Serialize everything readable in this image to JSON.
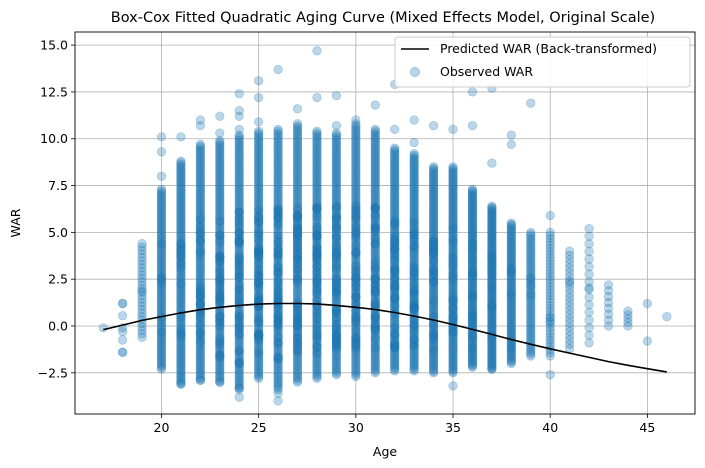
{
  "chart_data": {
    "type": "scatter",
    "title": "Box-Cox Fitted Quadratic Aging Curve (Mixed Effects Model, Original Scale)",
    "xlabel": "Age",
    "ylabel": "WAR",
    "xlim": [
      15.55,
      47.45
    ],
    "ylim": [
      -4.7,
      15.7
    ],
    "xticks": [
      20,
      25,
      30,
      35,
      40,
      45
    ],
    "xtick_labels": [
      "20",
      "25",
      "30",
      "35",
      "40",
      "45"
    ],
    "yticks": [
      -2.5,
      0.0,
      2.5,
      5.0,
      7.5,
      10.0,
      12.5,
      15.0
    ],
    "ytick_labels": [
      "−2.5",
      "0.0",
      "2.5",
      "5.0",
      "7.5",
      "10.0",
      "12.5",
      "15.0"
    ],
    "grid": true,
    "legend_position": "top-right",
    "colors": {
      "scatter": "#1f77b4",
      "line": "#000000"
    },
    "series": [
      {
        "name": "Predicted WAR (Back-transformed)",
        "type": "line",
        "x": [
          17,
          18,
          19,
          20,
          21,
          22,
          23,
          24,
          25,
          26,
          27,
          28,
          29,
          30,
          31,
          32,
          33,
          34,
          35,
          36,
          37,
          38,
          39,
          40,
          41,
          42,
          43,
          44,
          45,
          46
        ],
        "y": [
          -0.2,
          0.05,
          0.3,
          0.5,
          0.7,
          0.87,
          1.0,
          1.1,
          1.17,
          1.2,
          1.2,
          1.18,
          1.1,
          1.0,
          0.88,
          0.72,
          0.53,
          0.32,
          0.08,
          -0.18,
          -0.45,
          -0.72,
          -0.98,
          -1.22,
          -1.45,
          -1.68,
          -1.9,
          -2.1,
          -2.28,
          -2.45
        ]
      },
      {
        "name": "Observed WAR",
        "type": "scatter",
        "alpha": 0.3,
        "columns": [
          {
            "age": 17,
            "points": [
              -0.1
            ]
          },
          {
            "age": 18,
            "min": -1.4,
            "max": 1.2,
            "n": 5,
            "extra": [
              -1.4,
              -0.3,
              1.2
            ]
          },
          {
            "age": 19,
            "min": -0.6,
            "max": 4.4,
            "n": 28
          },
          {
            "age": 20,
            "min": -2.3,
            "max": 7.3,
            "n": 110,
            "extra": [
              8.0,
              9.3,
              10.1
            ]
          },
          {
            "age": 21,
            "min": -3.1,
            "max": 8.8,
            "n": 260,
            "extra": [
              -3.1,
              10.1
            ]
          },
          {
            "age": 22,
            "min": -2.9,
            "max": 9.7,
            "n": 480,
            "extra": [
              -2.9,
              10.7,
              11.0
            ]
          },
          {
            "age": 23,
            "min": -3.0,
            "max": 9.9,
            "n": 720,
            "extra": [
              -3.0,
              10.3,
              11.2
            ]
          },
          {
            "age": 24,
            "min": -3.4,
            "max": 10.2,
            "n": 900,
            "extra": [
              -3.3,
              -3.8,
              10.5,
              11.2,
              11.5,
              12.4
            ]
          },
          {
            "age": 25,
            "min": -2.8,
            "max": 10.4,
            "n": 1000,
            "extra": [
              10.9,
              12.2,
              13.1
            ]
          },
          {
            "age": 26,
            "min": -3.4,
            "max": 10.5,
            "n": 1050,
            "extra": [
              -3.6,
              -4.0,
              13.7
            ]
          },
          {
            "age": 27,
            "min": -3.0,
            "max": 10.8,
            "n": 1050,
            "extra": [
              11.6
            ]
          },
          {
            "age": 28,
            "min": -2.8,
            "max": 10.4,
            "n": 1000,
            "extra": [
              12.2,
              14.7
            ]
          },
          {
            "age": 29,
            "min": -2.6,
            "max": 10.3,
            "n": 950,
            "extra": [
              10.7,
              12.3
            ]
          },
          {
            "age": 30,
            "min": -2.7,
            "max": 10.8,
            "n": 900,
            "extra": [
              11.0
            ]
          },
          {
            "age": 31,
            "min": -2.5,
            "max": 10.5,
            "n": 820,
            "extra": [
              11.8
            ]
          },
          {
            "age": 32,
            "min": -2.4,
            "max": 9.5,
            "n": 720,
            "extra": [
              10.5,
              12.9
            ]
          },
          {
            "age": 33,
            "min": -2.4,
            "max": 9.2,
            "n": 600,
            "extra": [
              9.8,
              11.0
            ]
          },
          {
            "age": 34,
            "min": -2.5,
            "max": 8.5,
            "n": 480,
            "extra": [
              10.7
            ]
          },
          {
            "age": 35,
            "min": -2.5,
            "max": 8.5,
            "n": 360,
            "extra": [
              -3.2,
              10.5
            ]
          },
          {
            "age": 36,
            "min": -2.2,
            "max": 7.3,
            "n": 250,
            "extra": [
              10.7,
              12.5
            ]
          },
          {
            "age": 37,
            "min": -2.3,
            "max": 6.4,
            "n": 160,
            "extra": [
              -2.3,
              8.7,
              12.7
            ]
          },
          {
            "age": 38,
            "min": -2.0,
            "max": 5.5,
            "n": 100,
            "extra": [
              9.7,
              10.2
            ]
          },
          {
            "age": 39,
            "min": -1.6,
            "max": 5.0,
            "n": 65,
            "extra": [
              11.9
            ]
          },
          {
            "age": 40,
            "min": -1.6,
            "max": 5.0,
            "n": 40,
            "extra": [
              -2.6,
              5.9
            ]
          },
          {
            "age": 41,
            "min": -1.2,
            "max": 4.0,
            "n": 24
          },
          {
            "age": 42,
            "min": -0.9,
            "max": 5.2,
            "n": 16
          },
          {
            "age": 43,
            "min": 0.0,
            "max": 2.2,
            "n": 8
          },
          {
            "age": 44,
            "min": 0.0,
            "max": 0.8,
            "n": 5
          },
          {
            "age": 45,
            "points": [
              1.2,
              -0.8
            ]
          },
          {
            "age": 46,
            "points": [
              0.5
            ]
          }
        ]
      }
    ]
  }
}
